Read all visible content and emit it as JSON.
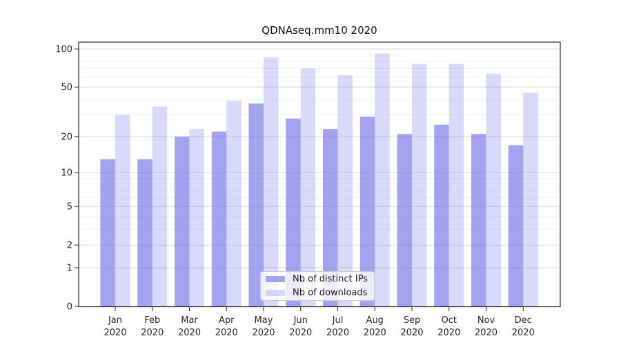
{
  "chart_data": {
    "type": "bar",
    "title": "QDNAseq.mm10 2020",
    "categories": [
      "Jan",
      "Feb",
      "Mar",
      "Apr",
      "May",
      "Jun",
      "Jul",
      "Aug",
      "Sep",
      "Oct",
      "Nov",
      "Dec"
    ],
    "xlabel_year": "2020",
    "series": [
      {
        "name": "Nb of distinct IPs",
        "values": [
          13,
          13,
          20,
          22,
          37,
          28,
          23,
          29,
          21,
          25,
          21,
          17
        ],
        "opacity": 0.6
      },
      {
        "name": "Nb of downloads",
        "values": [
          30,
          35,
          23,
          39,
          86,
          70,
          62,
          92,
          76,
          76,
          64,
          45
        ],
        "opacity": 0.25
      }
    ],
    "bar_color": "#6666e6",
    "yscale": "log1p",
    "ylim": [
      0,
      113
    ],
    "yticks": [
      0,
      1,
      2,
      5,
      10,
      20,
      50,
      100
    ],
    "minor_gridlines": [
      3,
      4,
      6,
      7,
      8,
      9,
      30,
      40,
      60,
      70,
      80,
      90
    ],
    "grid": "on",
    "legend_position": "lower-center",
    "colors": {
      "major_grid": "#d9d9d9",
      "minor_grid": "#efefef",
      "frame": "#262626",
      "tick_text": "#262626",
      "title_text": "#111111"
    }
  }
}
